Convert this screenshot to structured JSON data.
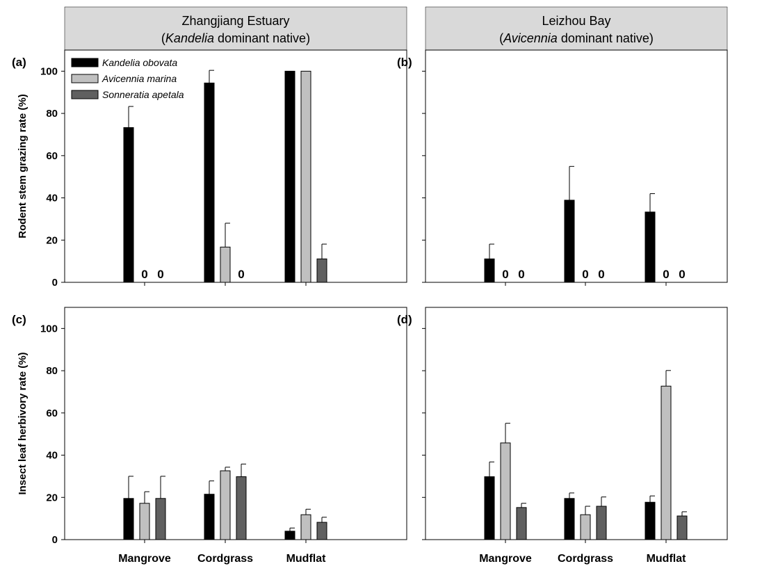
{
  "headers": [
    {
      "line1": "Zhangjiang Estuary",
      "line2_pre": "(",
      "line2_italic": "Kandelia",
      "line2_post": " dominant native)"
    },
    {
      "line1": "Leizhou Bay",
      "line2_pre": "(",
      "line2_italic": "Avicennia",
      "line2_post": " dominant native)"
    }
  ],
  "colors": {
    "Kandelia obovata": "#000000",
    "Avicennia marina": "#c0c0c0",
    "Sonneratia apetala": "#606060",
    "header_bg": "#d9d9d9"
  },
  "chart_data": [
    {
      "panel": "(a)",
      "type": "bar",
      "site": "Zhangjiang Estuary",
      "ylabel": "Rodent stem grazing rate (%)",
      "ylim": [
        0,
        110
      ],
      "yticks": [
        0,
        20,
        40,
        60,
        80,
        100
      ],
      "categories": [
        "Mangrove",
        "Cordgrass",
        "Mudflat"
      ],
      "series": [
        {
          "name": "Kandelia obovata",
          "values": [
            73.3,
            94.4,
            100
          ],
          "errors": [
            10,
            6,
            0
          ]
        },
        {
          "name": "Avicennia marina",
          "values": [
            0,
            16.7,
            100
          ],
          "errors": [
            0,
            11.3,
            0
          ]
        },
        {
          "name": "Sonneratia apetala",
          "values": [
            0,
            0,
            11.1
          ],
          "errors": [
            0,
            0,
            7
          ]
        }
      ],
      "zero_labels": [
        [
          "",
          "0",
          "0"
        ],
        [
          "",
          "",
          "0"
        ],
        [
          "",
          "",
          ""
        ]
      ],
      "legend": [
        "Kandelia obovata",
        "Avicennia marina",
        "Sonneratia apetala"
      ]
    },
    {
      "panel": "(b)",
      "type": "bar",
      "site": "Leizhou Bay",
      "ylabel": "",
      "ylim": [
        0,
        110
      ],
      "yticks": [
        0,
        20,
        40,
        60,
        80,
        100
      ],
      "categories": [
        "Mangrove",
        "Cordgrass",
        "Mudflat"
      ],
      "series": [
        {
          "name": "Kandelia obovata",
          "values": [
            11.1,
            38.9,
            33.3
          ],
          "errors": [
            7,
            16,
            8.7
          ]
        },
        {
          "name": "Avicennia marina",
          "values": [
            0,
            0,
            0
          ],
          "errors": [
            0,
            0,
            0
          ]
        },
        {
          "name": "Sonneratia apetala",
          "values": [
            0,
            0,
            0
          ],
          "errors": [
            0,
            0,
            0
          ]
        }
      ],
      "zero_labels": [
        [
          "",
          "0",
          "0"
        ],
        [
          "",
          "0",
          "0"
        ],
        [
          "",
          "0",
          "0"
        ]
      ]
    },
    {
      "panel": "(c)",
      "type": "bar",
      "site": "Zhangjiang Estuary",
      "ylabel": "Insect leaf herbivory rate (%)",
      "ylim": [
        0,
        110
      ],
      "yticks": [
        0,
        20,
        40,
        60,
        80,
        100
      ],
      "categories": [
        "Mangrove",
        "Cordgrass",
        "Mudflat"
      ],
      "series": [
        {
          "name": "Kandelia obovata",
          "values": [
            19.5,
            21.5,
            4
          ],
          "errors": [
            10.5,
            6.3,
            1.5
          ]
        },
        {
          "name": "Avicennia marina",
          "values": [
            17.2,
            32.6,
            11.8
          ],
          "errors": [
            5.5,
            1.7,
            2.6
          ]
        },
        {
          "name": "Sonneratia apetala",
          "values": [
            19.5,
            29.8,
            8.2
          ],
          "errors": [
            10.5,
            6,
            2.4
          ]
        }
      ]
    },
    {
      "panel": "(d)",
      "type": "bar",
      "site": "Leizhou Bay",
      "ylabel": "",
      "ylim": [
        0,
        110
      ],
      "yticks": [
        0,
        20,
        40,
        60,
        80,
        100
      ],
      "categories": [
        "Mangrove",
        "Cordgrass",
        "Mudflat"
      ],
      "series": [
        {
          "name": "Kandelia obovata",
          "values": [
            29.8,
            19.5,
            17.7
          ],
          "errors": [
            7,
            2.6,
            3
          ]
        },
        {
          "name": "Avicennia marina",
          "values": [
            45.8,
            11.8,
            72.7
          ],
          "errors": [
            9.3,
            4,
            7.4
          ]
        },
        {
          "name": "Sonneratia apetala",
          "values": [
            15.2,
            15.8,
            11.2
          ],
          "errors": [
            2,
            4.4,
            2
          ]
        }
      ]
    }
  ]
}
